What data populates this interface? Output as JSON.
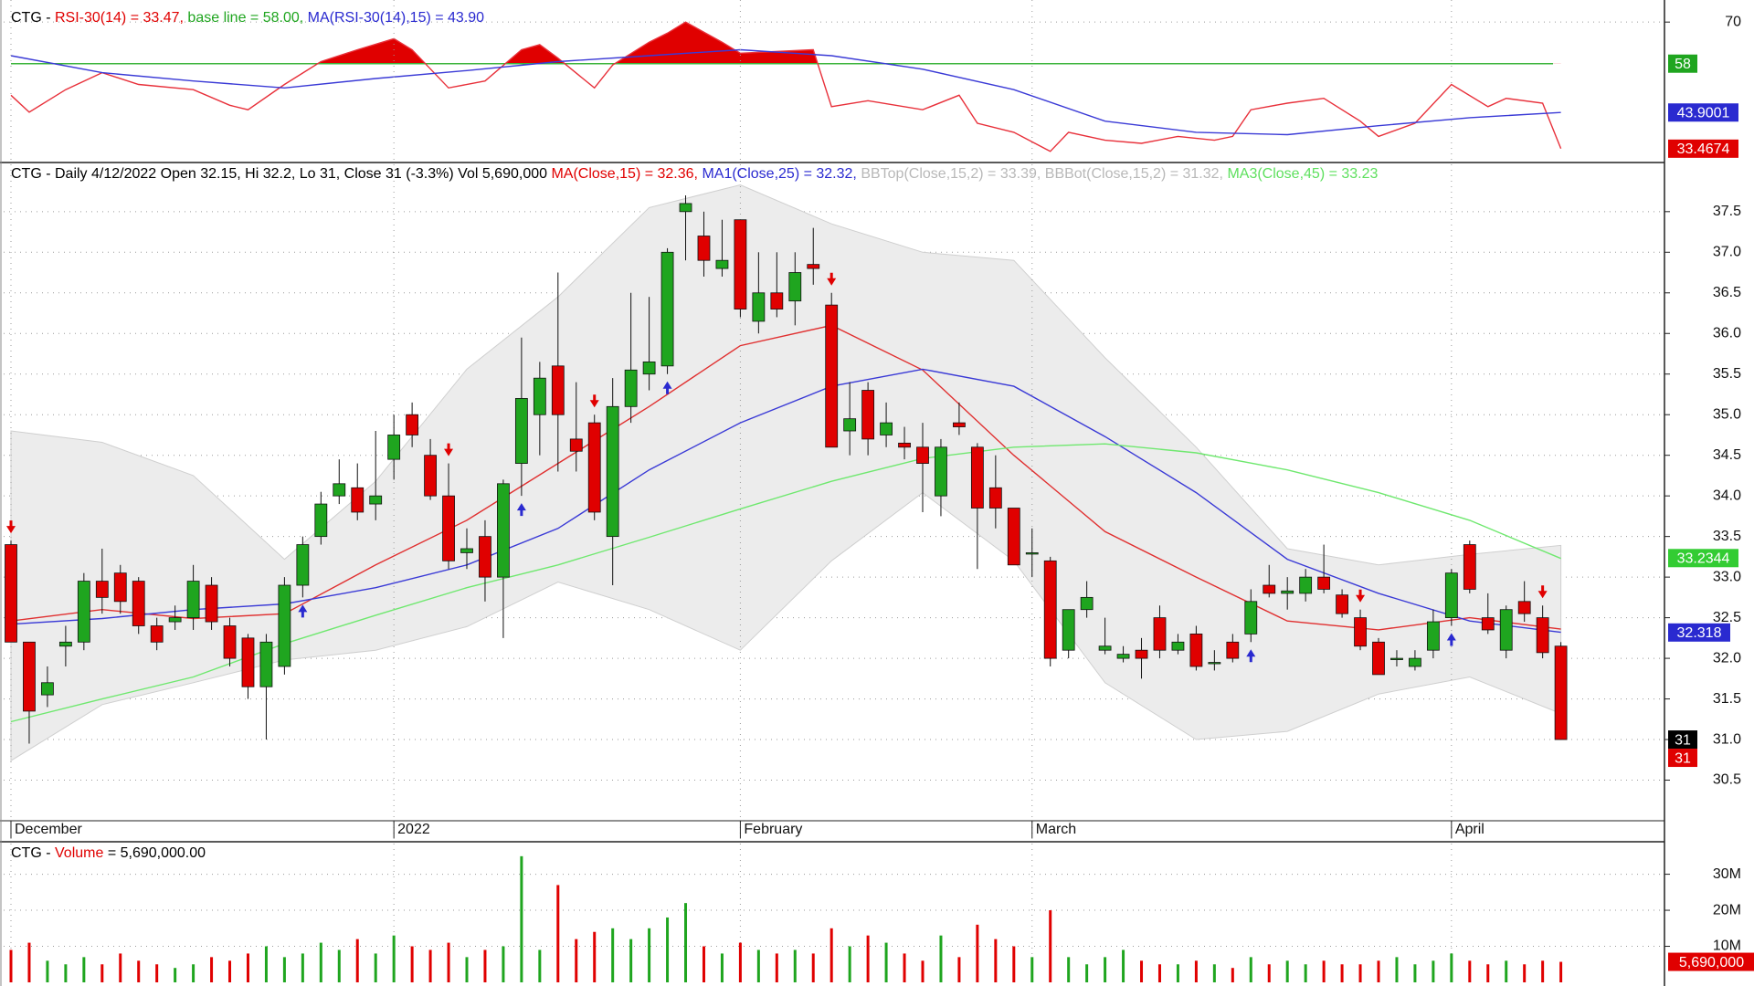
{
  "chart_data": [
    {
      "type": "line",
      "header": [
        {
          "text": "CTG - ",
          "color": "#000000"
        },
        {
          "text": "RSI-30(14) = 33.47, ",
          "color": "#e00000"
        },
        {
          "text": "base line = 58.00, ",
          "color": "#1fa51f"
        },
        {
          "text": "MA(RSI-30(14),15) = 43.90",
          "color": "#2a2ad0"
        }
      ],
      "ylim": [
        30,
        74
      ],
      "yticks": [
        70
      ],
      "baseline": 58,
      "baseline_color": "#3cb43c",
      "fill_color": "#e00000",
      "series": [
        {
          "color": "#e8303a",
          "x": [
            0,
            1,
            3,
            5,
            7,
            10,
            12,
            13,
            15,
            17,
            19,
            21,
            22,
            24,
            26,
            28,
            29,
            30,
            32,
            33,
            35,
            36,
            37,
            39,
            40,
            44,
            45,
            47,
            50,
            52,
            53,
            55,
            57,
            58,
            60,
            62,
            64,
            66,
            67,
            68,
            70,
            72,
            74,
            75,
            77,
            79,
            81,
            82,
            84,
            85
          ],
          "values": [
            48.9,
            44,
            50.5,
            55.4,
            52,
            50.5,
            46,
            44.7,
            52,
            58.6,
            62,
            65.2,
            62,
            51,
            53,
            62,
            63.5,
            59.6,
            51,
            57.6,
            64.2,
            66.8,
            70,
            64.2,
            61,
            62,
            45.6,
            47.3,
            44.7,
            48.9,
            40.8,
            38.2,
            32.7,
            38.2,
            35.9,
            35,
            37,
            35.9,
            37,
            44.7,
            46.6,
            48,
            41.4,
            37,
            40.8,
            52,
            45.6,
            48,
            46.6,
            33.47
          ]
        },
        {
          "color": "#3a3ad6",
          "x": [
            0,
            5,
            10,
            15,
            20,
            25,
            30,
            35,
            40,
            45,
            50,
            55,
            60,
            65,
            70,
            75,
            80,
            85
          ],
          "values": [
            60.3,
            55.4,
            53,
            51,
            53.7,
            56,
            58.6,
            60.3,
            62,
            60.3,
            56.4,
            50.5,
            41.4,
            38.2,
            37.5,
            40.1,
            42.4,
            43.9
          ]
        }
      ],
      "badges": [
        {
          "value": 58,
          "label": "58",
          "color": "#1fa51f"
        },
        {
          "value": 43.9001,
          "label": "43.9001",
          "color": "#2a2ad0"
        },
        {
          "value": 33.4674,
          "label": "33.4674",
          "color": "#e00000"
        }
      ]
    },
    {
      "type": "candlestick",
      "header": [
        {
          "text": "CTG - Daily 4/12/2022 Open 32.15, Hi 32.2, Lo 31, Close 31 (-3.3%) Vol 5,690,000 ",
          "color": "#000000"
        },
        {
          "text": "MA(Close,15) = 32.36, ",
          "color": "#e00000"
        },
        {
          "text": "MA1(Close,25) = 32.32, ",
          "color": "#2a2ad0"
        },
        {
          "text": "BBTop(Close,15,2) = 33.39, ",
          "color": "#b8b8b8"
        },
        {
          "text": "BBBot(Close,15,2) = 31.32, ",
          "color": "#b8b8b8"
        },
        {
          "text": "MA3(Close,45) = 33.23",
          "color": "#5ee05e"
        }
      ],
      "categories": [
        "December",
        null,
        null,
        null,
        null,
        null,
        null,
        null,
        null,
        null,
        null,
        null,
        null,
        null,
        null,
        null,
        null,
        null,
        null,
        null,
        null,
        "2022",
        null,
        null,
        null,
        null,
        null,
        null,
        null,
        null,
        null,
        null,
        null,
        null,
        null,
        null,
        null,
        null,
        null,
        null,
        "February",
        null,
        null,
        null,
        null,
        null,
        null,
        null,
        null,
        null,
        null,
        null,
        null,
        null,
        null,
        null,
        "March",
        null,
        null,
        null,
        null,
        null,
        null,
        null,
        null,
        null,
        null,
        null,
        null,
        null,
        null,
        null,
        null,
        null,
        null,
        null,
        null,
        null,
        null,
        "April",
        null,
        null,
        null,
        null,
        null,
        null
      ],
      "open": [
        33.4,
        32.2,
        31.55,
        32.15,
        32.2,
        32.95,
        33.05,
        32.95,
        32.4,
        32.45,
        32.5,
        32.9,
        32.4,
        32.25,
        31.65,
        31.9,
        32.9,
        33.5,
        34.0,
        34.1,
        33.9,
        34.45,
        35.0,
        34.5,
        34.0,
        33.3,
        33.5,
        33.0,
        34.4,
        35.0,
        35.6,
        34.7,
        34.9,
        33.5,
        35.1,
        35.5,
        35.6,
        37.5,
        37.2,
        36.8,
        37.4,
        36.15,
        36.5,
        36.4,
        36.85,
        36.35,
        34.8,
        35.3,
        34.75,
        34.65,
        34.6,
        34.0,
        34.9,
        34.6,
        34.1,
        33.85,
        33.3,
        33.2,
        32.1,
        32.6,
        32.1,
        32.0,
        32.1,
        32.5,
        32.1,
        32.3,
        31.95,
        32.2,
        32.3,
        32.9,
        32.8,
        32.8,
        33.0,
        32.78,
        32.5,
        32.2,
        32.0,
        31.9,
        32.1,
        32.5,
        33.4,
        32.5,
        32.1,
        32.7,
        32.5,
        32.15
      ],
      "high": [
        33.45,
        32.2,
        31.9,
        32.4,
        33.05,
        33.35,
        33.15,
        33.0,
        32.5,
        32.65,
        33.15,
        33.0,
        32.5,
        32.3,
        32.3,
        33.0,
        33.5,
        34.05,
        34.45,
        34.4,
        34.8,
        35.0,
        35.15,
        34.7,
        34.4,
        33.6,
        33.7,
        34.2,
        35.95,
        35.65,
        36.75,
        35.4,
        35.0,
        35.45,
        36.5,
        36.45,
        37.05,
        37.7,
        37.5,
        37.4,
        37.4,
        37.0,
        37.0,
        37.0,
        37.3,
        36.5,
        35.4,
        35.4,
        35.15,
        34.85,
        34.9,
        34.7,
        35.15,
        34.65,
        34.5,
        33.85,
        33.6,
        33.25,
        32.6,
        32.95,
        32.5,
        32.15,
        32.25,
        32.65,
        32.3,
        32.4,
        32.1,
        32.3,
        32.85,
        33.15,
        33.0,
        33.1,
        33.4,
        32.85,
        32.6,
        32.25,
        32.1,
        32.1,
        32.6,
        33.1,
        33.45,
        32.8,
        32.65,
        32.95,
        32.65,
        32.2
      ],
      "low": [
        32.2,
        30.95,
        31.4,
        31.9,
        32.1,
        32.55,
        32.55,
        32.3,
        32.1,
        32.35,
        32.35,
        32.35,
        31.9,
        31.5,
        31.0,
        31.8,
        32.75,
        33.4,
        33.9,
        33.7,
        33.7,
        34.2,
        34.6,
        33.95,
        33.1,
        33.1,
        32.7,
        32.25,
        34.0,
        34.5,
        34.3,
        34.3,
        33.7,
        32.9,
        34.9,
        35.3,
        35.5,
        36.9,
        36.7,
        36.7,
        36.2,
        36.0,
        36.2,
        36.1,
        36.6,
        34.6,
        34.5,
        34.5,
        34.6,
        34.45,
        33.8,
        33.75,
        34.75,
        33.1,
        33.6,
        33.15,
        33.0,
        31.9,
        32.0,
        32.5,
        32.05,
        31.95,
        31.75,
        32.0,
        32.05,
        31.85,
        31.85,
        31.95,
        32.2,
        32.75,
        32.6,
        32.7,
        32.8,
        32.5,
        32.1,
        31.8,
        31.9,
        31.85,
        32.0,
        32.4,
        32.8,
        32.3,
        32.0,
        32.45,
        32.0,
        31.0
      ],
      "close": [
        32.2,
        31.35,
        31.7,
        32.2,
        32.95,
        32.75,
        32.7,
        32.4,
        32.2,
        32.5,
        32.95,
        32.45,
        32.0,
        31.65,
        32.2,
        32.9,
        33.4,
        33.9,
        34.15,
        33.8,
        34.0,
        34.75,
        34.75,
        34.0,
        33.2,
        33.35,
        33.0,
        34.15,
        35.2,
        35.45,
        35.0,
        34.55,
        33.8,
        35.1,
        35.55,
        35.65,
        37.0,
        37.6,
        36.9,
        36.9,
        36.3,
        36.5,
        36.3,
        36.75,
        36.8,
        34.6,
        34.95,
        34.7,
        34.9,
        34.6,
        34.4,
        34.6,
        34.85,
        33.85,
        33.85,
        33.15,
        33.3,
        32.0,
        32.6,
        32.75,
        32.15,
        32.05,
        32.0,
        32.1,
        32.2,
        31.9,
        31.95,
        32.0,
        32.7,
        32.8,
        32.83,
        33.0,
        32.85,
        32.55,
        32.15,
        31.8,
        32.0,
        32.0,
        32.45,
        33.05,
        32.85,
        32.35,
        32.6,
        32.55,
        32.07,
        31.0
      ],
      "up_color": "#1fa51f",
      "down_color": "#e00000",
      "ylim": [
        30,
        38.06
      ],
      "yticks": [
        30.5,
        {
          "value": 31,
          "label": "31.0"
        },
        31.5,
        {
          "value": 32,
          "label": "32.0"
        },
        32.5,
        {
          "value": 33,
          "label": "33.0"
        },
        33.5,
        {
          "value": 34,
          "label": "34.0"
        },
        34.5,
        {
          "value": 35,
          "label": "35.0"
        },
        35.5,
        {
          "value": 36,
          "label": "36.0"
        },
        36.5,
        {
          "value": 37,
          "label": "37.0"
        },
        37.5
      ],
      "bands": {
        "color": "#ececec",
        "x": [
          0,
          5,
          10,
          15,
          20,
          25,
          30,
          35,
          40,
          45,
          50,
          55,
          60,
          65,
          70,
          75,
          80,
          85
        ],
        "upper": [
          34.8,
          34.66,
          34.25,
          33.22,
          34.18,
          35.56,
          36.45,
          37.55,
          37.83,
          37.35,
          37.0,
          36.9,
          35.7,
          34.6,
          33.35,
          33.15,
          33.28,
          33.39
        ],
        "lower": [
          30.74,
          31.43,
          31.7,
          31.98,
          32.1,
          32.39,
          32.94,
          32.6,
          32.1,
          33.2,
          34.04,
          33.2,
          31.7,
          31.0,
          31.1,
          31.56,
          31.77,
          31.32
        ]
      },
      "lines": [
        {
          "color": "#e03030",
          "x": [
            0,
            5,
            10,
            15,
            20,
            25,
            30,
            35,
            40,
            45,
            50,
            55,
            60,
            65,
            70,
            75,
            80,
            85
          ],
          "values": [
            32.46,
            32.6,
            32.49,
            32.55,
            33.15,
            33.7,
            34.4,
            35.1,
            35.85,
            36.1,
            35.55,
            34.5,
            33.56,
            33.0,
            32.46,
            32.35,
            32.5,
            32.36
          ]
        },
        {
          "color": "#3a3ad6",
          "x": [
            0,
            5,
            10,
            15,
            20,
            25,
            30,
            35,
            40,
            45,
            50,
            55,
            60,
            65,
            70,
            75,
            80,
            85
          ],
          "values": [
            32.42,
            32.49,
            32.6,
            32.67,
            32.87,
            33.15,
            33.6,
            34.32,
            34.9,
            35.35,
            35.56,
            35.35,
            34.73,
            34.04,
            33.22,
            32.8,
            32.46,
            32.32
          ]
        },
        {
          "color": "#6fe86f",
          "x": [
            0,
            5,
            10,
            15,
            20,
            25,
            30,
            35,
            40,
            45,
            50,
            55,
            60,
            65,
            70,
            75,
            80,
            85
          ],
          "values": [
            31.22,
            31.5,
            31.77,
            32.18,
            32.53,
            32.87,
            33.15,
            33.49,
            33.84,
            34.18,
            34.46,
            34.6,
            34.64,
            34.53,
            34.32,
            34.04,
            33.7,
            33.23
          ]
        }
      ],
      "signals": {
        "up": [
          16,
          28,
          36,
          68,
          79
        ],
        "down": [
          0,
          24,
          32,
          45,
          74,
          84
        ],
        "up_color": "#2a2ad0",
        "down_color": "#e00000"
      },
      "badges": [
        {
          "value": 33.2344,
          "label": "33.2344",
          "color": "#33cc33"
        },
        {
          "value": 32.318,
          "label": "32.318",
          "color": "#2a2ad0"
        },
        {
          "value": 31,
          "label": "31",
          "color": "#000000"
        },
        {
          "value": 31,
          "label": "31",
          "color": "#e00000"
        }
      ]
    },
    {
      "type": "bar",
      "header": [
        {
          "text": "CTG - ",
          "color": "#000000"
        },
        {
          "text": "Volume",
          "color": "#e00000"
        },
        {
          "text": " = 5,690,000.00",
          "color": "#000000"
        }
      ],
      "values": [
        9000000,
        11000000,
        6000000,
        5000000,
        7000000,
        5000000,
        8000000,
        6000000,
        5000000,
        4000000,
        5000000,
        7000000,
        6000000,
        8000000,
        10000000,
        7000000,
        8000000,
        11000000,
        9000000,
        12000000,
        8000000,
        13000000,
        10000000,
        9000000,
        11000000,
        7000000,
        9000000,
        10000000,
        35000000,
        9000000,
        27000000,
        12000000,
        14000000,
        15000000,
        12000000,
        15000000,
        18000000,
        22000000,
        10000000,
        8000000,
        11000000,
        9000000,
        8000000,
        9000000,
        8000000,
        15000000,
        10000000,
        13000000,
        11000000,
        8000000,
        6000000,
        13000000,
        7000000,
        16000000,
        12000000,
        10000000,
        7000000,
        20000000,
        7000000,
        5000000,
        7000000,
        9000000,
        6000000,
        5000000,
        5000000,
        6000000,
        5000000,
        4000000,
        7000000,
        5000000,
        6000000,
        5000000,
        6000000,
        5000000,
        5000000,
        6000000,
        7000000,
        5000000,
        6000000,
        8000000,
        6000000,
        5000000,
        6000000,
        5000000,
        6000000,
        5690000
      ],
      "ylim": [
        0,
        38000000
      ],
      "yticks": [
        {
          "value": 10000000,
          "label": "10M"
        },
        {
          "value": 20000000,
          "label": "20M"
        },
        {
          "value": 30000000,
          "label": "30M"
        }
      ],
      "badges": [
        {
          "value": 5690000,
          "label": "5,690,000",
          "color": "#e00000"
        }
      ]
    }
  ]
}
